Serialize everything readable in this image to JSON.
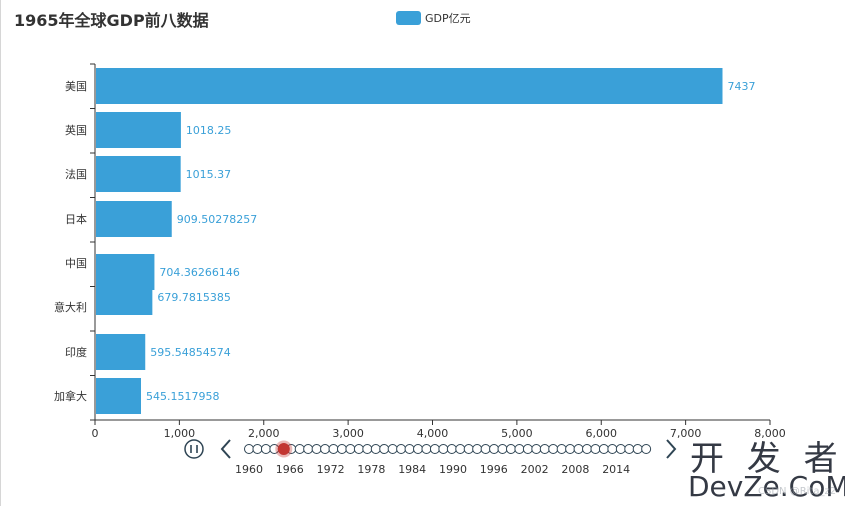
{
  "chart_data": {
    "type": "bar",
    "orientation": "horizontal",
    "title": "1965年全球GDP前八数据",
    "legend": {
      "label": "GDP亿元",
      "placement": "top-center"
    },
    "categories": [
      "美国",
      "英国",
      "法国",
      "日本",
      "中国",
      "意大利",
      "印度",
      "加拿大"
    ],
    "values": [
      7437,
      1018.25,
      1015.37,
      909.50278257,
      704.36266146,
      679.7815385,
      595.54854574,
      545.1517958
    ],
    "data_labels": [
      "7437",
      "1018.25",
      "1015.37",
      "909.50278257",
      "704.36266146",
      "679.7815385",
      "595.54854574",
      "545.1517958"
    ],
    "xlim": [
      0,
      8000
    ],
    "x_ticks": [
      "0",
      "1,000",
      "2,000",
      "3,000",
      "4,000",
      "5,000",
      "6,000",
      "7,000",
      "8,000"
    ],
    "grid": false,
    "color": "#3aa0d8",
    "label_color": "#3aa0d8"
  },
  "timeline": {
    "labels": [
      "1960",
      "1966",
      "1972",
      "1978",
      "1984",
      "1990",
      "1996",
      "2002",
      "2008",
      "2014"
    ],
    "dot_count": 48,
    "current_index": 4,
    "dot_color": "#2f4554",
    "active_color": "#c23531",
    "play_icon": "pause-icon",
    "prev_icon": "chevron-left-icon",
    "next_icon": "chevron-right-icon"
  },
  "watermark": {
    "line1": "开 发 者",
    "line2": "DevZe.CoM",
    "line3": "CSDN @Rita_z2"
  }
}
